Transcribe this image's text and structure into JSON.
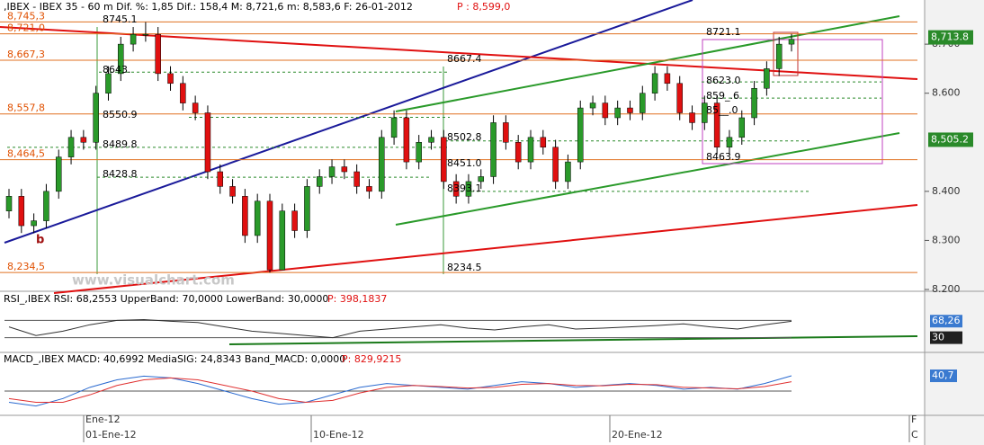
{
  "chart_data": {
    "type": "candlestick",
    "header": ",IBEX - IBEX 35 -  60 m Dif. %: 1,85 Dif.: 158,4 M: 8,721,6 m: 8,583,6 F: 26-01-2012",
    "header_price": "P : 8,599,0",
    "watermark": "www.visualchart.com",
    "marker": "b",
    "up_color": "#2a9a2a",
    "down_color": "#e01010",
    "open": [
      8360,
      8390,
      8330,
      8340,
      8400,
      8470,
      8510,
      8500,
      8600,
      8640,
      8700,
      8720,
      8720,
      8640,
      8620,
      8580,
      8560,
      8440,
      8410,
      8390,
      8310,
      8380,
      8240,
      8360,
      8320,
      8410,
      8430,
      8450,
      8440,
      8410,
      8400,
      8510,
      8550,
      8460,
      8500,
      8510,
      8420,
      8390,
      8420,
      8430,
      8540,
      8500,
      8460,
      8510,
      8490,
      8420,
      8460,
      8570,
      8580,
      8550,
      8570,
      8560,
      8600,
      8640,
      8620,
      8560,
      8540,
      8580,
      8490,
      8510,
      8550,
      8610,
      8650,
      8700
    ],
    "high": [
      8405,
      8405,
      8355,
      8415,
      8485,
      8525,
      8525,
      8615,
      8655,
      8715,
      8735,
      8745,
      8735,
      8655,
      8635,
      8595,
      8575,
      8455,
      8425,
      8405,
      8395,
      8395,
      8375,
      8375,
      8425,
      8445,
      8465,
      8465,
      8455,
      8425,
      8525,
      8565,
      8565,
      8515,
      8525,
      8525,
      8435,
      8435,
      8445,
      8555,
      8555,
      8515,
      8525,
      8525,
      8505,
      8475,
      8585,
      8595,
      8595,
      8585,
      8585,
      8615,
      8655,
      8655,
      8635,
      8575,
      8595,
      8595,
      8525,
      8565,
      8625,
      8665,
      8715,
      8721.1
    ],
    "low": [
      8345,
      8315,
      8315,
      8325,
      8385,
      8455,
      8485,
      8485,
      8585,
      8625,
      8685,
      8705,
      8625,
      8605,
      8565,
      8545,
      8425,
      8395,
      8375,
      8295,
      8295,
      8234.5,
      8240,
      8305,
      8305,
      8395,
      8415,
      8425,
      8395,
      8385,
      8385,
      8495,
      8445,
      8445,
      8485,
      8405,
      8375,
      8375,
      8405,
      8415,
      8485,
      8445,
      8445,
      8475,
      8405,
      8405,
      8445,
      8555,
      8535,
      8535,
      8545,
      8545,
      8585,
      8605,
      8545,
      8525,
      8525,
      8475,
      8475,
      8495,
      8535,
      8595,
      8635,
      8685
    ],
    "close": [
      8390,
      8330,
      8340,
      8400,
      8470,
      8510,
      8500,
      8600,
      8640,
      8700,
      8720,
      8720,
      8640,
      8620,
      8580,
      8560,
      8440,
      8410,
      8390,
      8310,
      8380,
      8240,
      8360,
      8320,
      8410,
      8430,
      8450,
      8440,
      8410,
      8400,
      8510,
      8550,
      8460,
      8500,
      8510,
      8420,
      8390,
      8420,
      8430,
      8540,
      8500,
      8460,
      8510,
      8490,
      8420,
      8460,
      8570,
      8580,
      8550,
      8570,
      8560,
      8600,
      8640,
      8620,
      8560,
      8540,
      8580,
      8490,
      8510,
      8550,
      8610,
      8650,
      8700,
      8710
    ],
    "ylim": [
      8200,
      8790
    ],
    "yticks": [
      {
        "value": 8700,
        "label": "8.700"
      },
      {
        "value": 8600,
        "label": "8.600"
      },
      {
        "value": 8400,
        "label": "8.400"
      },
      {
        "value": 8300,
        "label": "8.300"
      },
      {
        "value": 8200,
        "label": "8.200"
      }
    ],
    "levels": [
      {
        "value": 8745.3,
        "label": "8,745,3"
      },
      {
        "value": 8721,
        "label": "8,721,0"
      },
      {
        "value": 8667.3,
        "label": "8,667,3"
      },
      {
        "value": 8557.8,
        "label": "8,557,8"
      },
      {
        "value": 8464.5,
        "label": "8,464,5"
      },
      {
        "value": 8234.5,
        "label": "8,234,5"
      }
    ],
    "level_color": "#e07020",
    "dotted_levels": [
      8643,
      8550.9,
      8489.8,
      8428.8,
      8502.8,
      8623,
      8590,
      8400
    ],
    "dotted_color": "#2a8a2a",
    "annotations": [
      "8745.1",
      "8643.",
      "8550.9",
      "8489.8",
      "8428.8",
      "8667.4",
      "8502.8",
      "8451.0",
      "8393.1",
      "8234.5",
      "8721.1",
      "8623.0",
      "859_.6",
      "85__.0",
      "8463.9"
    ],
    "price_boxes": [
      {
        "value": 8713.8,
        "label": "8,713.8"
      },
      {
        "value": 8505.2,
        "label": "8,505.2"
      }
    ],
    "box_color": "#2a8a2a",
    "x_labels": [
      "Ene-12",
      "01-Ene-12",
      "10-Ene-12",
      "20-Ene-12",
      "F",
      "C"
    ],
    "rsi": {
      "header": "RSI_,IBEX RSI: 68,2553 UpperBand: 70,0000 LowerBand: 30,0000",
      "header_price": "P: 398,1837",
      "values": [
        55,
        35,
        45,
        60,
        70,
        72,
        68,
        65,
        55,
        45,
        40,
        35,
        30,
        45,
        50,
        55,
        60,
        52,
        48,
        55,
        60,
        50,
        52,
        55,
        58,
        62,
        55,
        50,
        60,
        68
      ],
      "ylim": [
        0,
        100
      ],
      "bands": [
        70,
        30
      ],
      "color": "#303030",
      "boxes": [
        {
          "value": 68.26,
          "label": "68,26",
          "color": "#3a7ad0"
        },
        {
          "value": 30,
          "label": "30",
          "color": "#202020"
        }
      ]
    },
    "macd": {
      "header": "MACD_,IBEX MACD: 40,6992 MediaSIG: 24,8343 Band_MACD: 0,0000",
      "header_price": "P: 829,9215",
      "ylim": [
        -60,
        60
      ],
      "band": 0,
      "series": [
        {
          "color": "#2a6ad0",
          "values": [
            -30,
            -40,
            -20,
            10,
            30,
            40,
            35,
            20,
            0,
            -20,
            -35,
            -30,
            -10,
            10,
            20,
            15,
            10,
            5,
            15,
            25,
            20,
            10,
            15,
            20,
            15,
            5,
            10,
            5,
            20,
            40.7
          ]
        },
        {
          "color": "#e03030",
          "values": [
            -20,
            -30,
            -30,
            -10,
            15,
            30,
            35,
            30,
            15,
            0,
            -20,
            -30,
            -25,
            -5,
            10,
            15,
            12,
            8,
            10,
            18,
            20,
            15,
            14,
            18,
            17,
            10,
            8,
            6,
            12,
            24.8
          ]
        }
      ],
      "boxes": [
        {
          "value": 40.7,
          "label": "40,7",
          "color": "#3a7ad0"
        }
      ]
    }
  }
}
